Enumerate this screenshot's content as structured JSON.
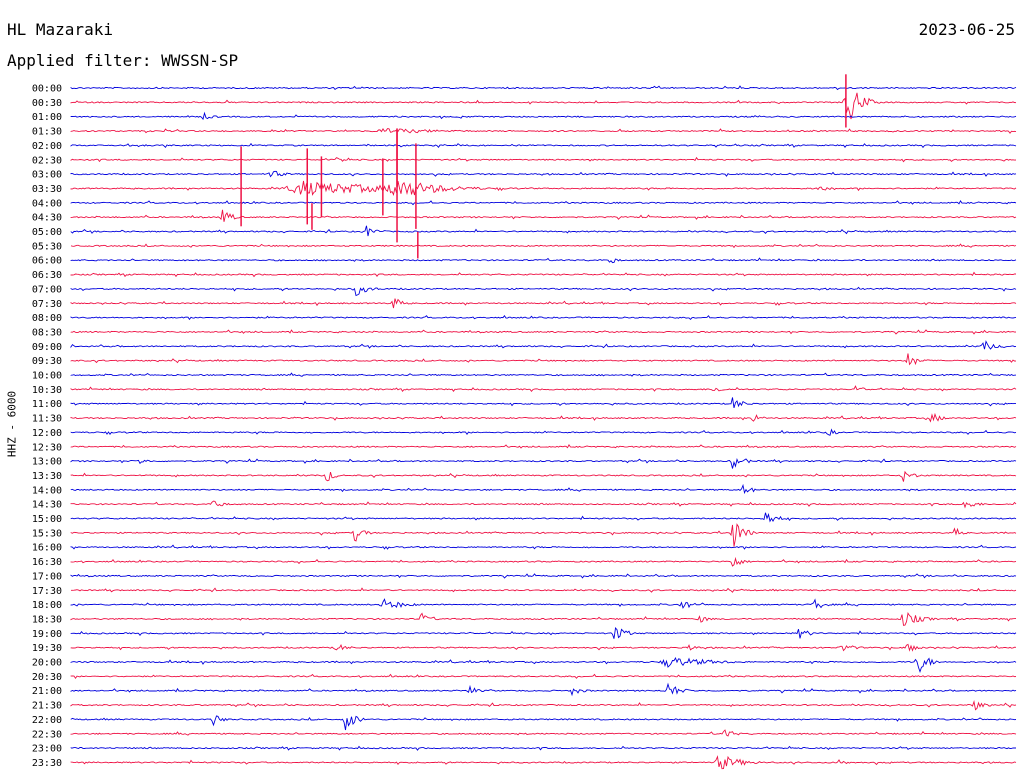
{
  "header": {
    "station": "HL Mazaraki",
    "date": "2023-06-25",
    "filter": "Applied filter: WWSSN-SP"
  },
  "axis": {
    "ylabel": "HHZ - 6000"
  },
  "colors": {
    "blue": "#0000dd",
    "red": "#ee1144"
  },
  "chart_data": {
    "type": "line",
    "title": "HL Mazaraki",
    "subtitle": "Applied filter: WWSSN-SP",
    "ylabel": "HHZ - 6000",
    "row_labels": [
      "00:00",
      "00:30",
      "01:00",
      "01:30",
      "02:00",
      "02:30",
      "03:00",
      "03:30",
      "04:00",
      "04:30",
      "05:00",
      "05:30",
      "06:00",
      "06:30",
      "07:00",
      "07:30",
      "08:00",
      "08:30",
      "09:00",
      "09:30",
      "10:00",
      "10:30",
      "11:00",
      "11:30",
      "12:00",
      "12:30",
      "13:00",
      "13:30",
      "14:00",
      "14:30",
      "15:00",
      "15:30",
      "16:00",
      "16:30",
      "17:00",
      "17:30",
      "18:00",
      "18:30",
      "19:00",
      "19:30",
      "20:00",
      "20:30",
      "21:00",
      "21:30",
      "22:00",
      "22:30",
      "23:00",
      "23:30"
    ],
    "row_colors": [
      "blue",
      "red"
    ],
    "bursts": [
      {
        "row": 1,
        "x": 0.82,
        "amp": 28,
        "w": 0.012
      },
      {
        "row": 2,
        "x": 0.14,
        "amp": 4,
        "w": 0.01
      },
      {
        "row": 3,
        "x": 0.33,
        "amp": 3,
        "w": 0.06
      },
      {
        "row": 5,
        "x": 0.28,
        "amp": 3,
        "w": 0.015
      },
      {
        "row": 6,
        "x": 0.21,
        "amp": 5,
        "w": 0.012
      },
      {
        "row": 7,
        "x": 0.24,
        "amp": 8,
        "w": 0.09
      },
      {
        "row": 7,
        "x": 0.34,
        "amp": 12,
        "w": 0.04
      },
      {
        "row": 7,
        "x": 0.79,
        "amp": 4,
        "w": 0.01
      },
      {
        "row": 9,
        "x": 0.16,
        "amp": 8,
        "w": 0.01
      },
      {
        "row": 10,
        "x": 0.31,
        "amp": 8,
        "w": 0.01
      },
      {
        "row": 12,
        "x": 0.57,
        "amp": 6,
        "w": 0.006
      },
      {
        "row": 14,
        "x": 0.3,
        "amp": 8,
        "w": 0.012
      },
      {
        "row": 15,
        "x": 0.34,
        "amp": 8,
        "w": 0.008
      },
      {
        "row": 18,
        "x": 0.965,
        "amp": 7,
        "w": 0.01
      },
      {
        "row": 19,
        "x": 0.885,
        "amp": 8,
        "w": 0.01
      },
      {
        "row": 21,
        "x": 0.68,
        "amp": 4,
        "w": 0.01
      },
      {
        "row": 21,
        "x": 0.83,
        "amp": 4,
        "w": 0.01
      },
      {
        "row": 22,
        "x": 0.7,
        "amp": 7,
        "w": 0.01
      },
      {
        "row": 23,
        "x": 0.72,
        "amp": 6,
        "w": 0.008
      },
      {
        "row": 23,
        "x": 0.91,
        "amp": 6,
        "w": 0.01
      },
      {
        "row": 24,
        "x": 0.8,
        "amp": 5,
        "w": 0.008
      },
      {
        "row": 26,
        "x": 0.07,
        "amp": 4,
        "w": 0.01
      },
      {
        "row": 26,
        "x": 0.7,
        "amp": 9,
        "w": 0.01
      },
      {
        "row": 27,
        "x": 0.27,
        "amp": 10,
        "w": 0.006
      },
      {
        "row": 27,
        "x": 0.88,
        "amp": 7,
        "w": 0.01
      },
      {
        "row": 28,
        "x": 0.71,
        "amp": 8,
        "w": 0.008
      },
      {
        "row": 29,
        "x": 0.15,
        "amp": 7,
        "w": 0.008
      },
      {
        "row": 29,
        "x": 0.945,
        "amp": 7,
        "w": 0.01
      },
      {
        "row": 30,
        "x": 0.735,
        "amp": 9,
        "w": 0.01
      },
      {
        "row": 31,
        "x": 0.3,
        "amp": 10,
        "w": 0.008
      },
      {
        "row": 31,
        "x": 0.7,
        "amp": 18,
        "w": 0.01
      },
      {
        "row": 31,
        "x": 0.935,
        "amp": 7,
        "w": 0.006
      },
      {
        "row": 33,
        "x": 0.7,
        "amp": 8,
        "w": 0.008
      },
      {
        "row": 36,
        "x": 0.33,
        "amp": 6,
        "w": 0.02
      },
      {
        "row": 36,
        "x": 0.645,
        "amp": 6,
        "w": 0.01
      },
      {
        "row": 36,
        "x": 0.785,
        "amp": 7,
        "w": 0.01
      },
      {
        "row": 37,
        "x": 0.37,
        "amp": 7,
        "w": 0.008
      },
      {
        "row": 37,
        "x": 0.665,
        "amp": 4,
        "w": 0.01
      },
      {
        "row": 37,
        "x": 0.88,
        "amp": 9,
        "w": 0.015
      },
      {
        "row": 38,
        "x": 0.575,
        "amp": 10,
        "w": 0.01
      },
      {
        "row": 38,
        "x": 0.77,
        "amp": 6,
        "w": 0.01
      },
      {
        "row": 39,
        "x": 0.28,
        "amp": 5,
        "w": 0.01
      },
      {
        "row": 39,
        "x": 0.65,
        "amp": 6,
        "w": 0.008
      },
      {
        "row": 39,
        "x": 0.815,
        "amp": 5,
        "w": 0.012
      },
      {
        "row": 39,
        "x": 0.885,
        "amp": 8,
        "w": 0.008
      },
      {
        "row": 40,
        "x": 0.63,
        "amp": 6,
        "w": 0.04
      },
      {
        "row": 40,
        "x": 0.895,
        "amp": 14,
        "w": 0.01
      },
      {
        "row": 42,
        "x": 0.42,
        "amp": 6,
        "w": 0.008
      },
      {
        "row": 42,
        "x": 0.53,
        "amp": 5,
        "w": 0.01
      },
      {
        "row": 42,
        "x": 0.63,
        "amp": 9,
        "w": 0.012
      },
      {
        "row": 43,
        "x": 0.955,
        "amp": 6,
        "w": 0.01
      },
      {
        "row": 44,
        "x": 0.15,
        "amp": 7,
        "w": 0.008
      },
      {
        "row": 44,
        "x": 0.29,
        "amp": 12,
        "w": 0.01
      },
      {
        "row": 45,
        "x": 0.69,
        "amp": 6,
        "w": 0.01
      },
      {
        "row": 47,
        "x": 0.685,
        "amp": 9,
        "w": 0.02
      },
      {
        "row": 47,
        "x": 0.81,
        "amp": 4,
        "w": 0.01
      }
    ],
    "spikes": [
      {
        "row": 1,
        "x": 0.82,
        "amp": 28
      },
      {
        "row": 7,
        "x": 0.18,
        "amp": 42
      },
      {
        "row": 7,
        "x": 0.25,
        "amp": 40
      },
      {
        "row": 7,
        "x": 0.265,
        "amp": 32
      },
      {
        "row": 7,
        "x": 0.33,
        "amp": 30
      },
      {
        "row": 7,
        "x": 0.345,
        "amp": 60
      },
      {
        "row": 7,
        "x": 0.365,
        "amp": 45
      },
      {
        "row": 5,
        "x": 0.345,
        "amp": 30
      },
      {
        "row": 9,
        "x": 0.255,
        "amp": 14
      },
      {
        "row": 11,
        "x": 0.367,
        "amp": 14
      }
    ]
  }
}
